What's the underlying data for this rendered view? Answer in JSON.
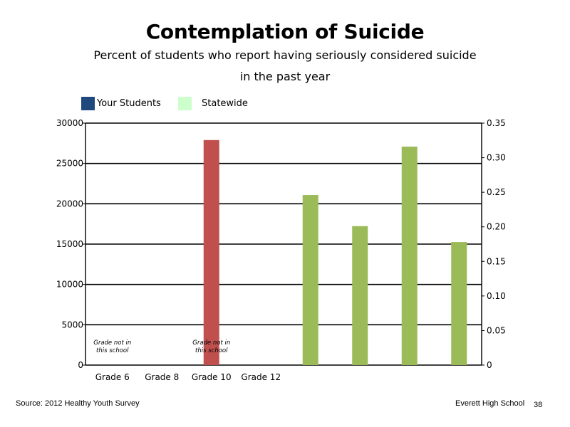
{
  "slide": {
    "title": "Contemplation of Suicide",
    "subtitle_line1": "Percent of students who report having seriously considered suicide",
    "subtitle_line2": "in the past year",
    "source": "Source: 2012 Healthy Youth Survey",
    "school": "Everett High School",
    "page_number": "38"
  },
  "legend": [
    {
      "label": "Your Students",
      "color": "#1f497d"
    },
    {
      "label": "Statewide",
      "color": "#ccffcc"
    }
  ],
  "chart_data": {
    "type": "bar",
    "categories": [
      "Grade 6",
      "Grade 8",
      "Grade 10",
      "Grade 12"
    ],
    "left_axis": {
      "min": 0,
      "max": 30000,
      "ticks": [
        0,
        5000,
        10000,
        15000,
        20000,
        25000,
        30000
      ],
      "tick_labels": [
        "0",
        "5000",
        "10000",
        "15000",
        "20000",
        "25000",
        "30000"
      ]
    },
    "right_axis": {
      "min": 0,
      "max": 0.35,
      "ticks": [
        0,
        0.05,
        0.1,
        0.15,
        0.2,
        0.25,
        0.3,
        0.35
      ],
      "tick_labels": [
        "0",
        "0.05",
        "0.10",
        "0.15",
        "0.20",
        "0.25",
        "0.30",
        "0.35"
      ]
    },
    "grid": true,
    "bars": [
      {
        "slot": 2,
        "axis": "left",
        "value": 27900,
        "color": "#c0504d"
      },
      {
        "slot": 4,
        "axis": "right",
        "value": 0.246,
        "color": "#9bbb59"
      },
      {
        "slot": 5,
        "axis": "right",
        "value": 0.201,
        "color": "#9bbb59"
      },
      {
        "slot": 6,
        "axis": "right",
        "value": 0.316,
        "color": "#9bbb59"
      },
      {
        "slot": 7,
        "axis": "right",
        "value": 0.178,
        "color": "#9bbb59"
      }
    ],
    "notes": [
      {
        "slot": 0,
        "line1": "Grade not in",
        "line2": "this school"
      },
      {
        "slot": 2,
        "line1": "Grade not in",
        "line2": "this school"
      }
    ]
  }
}
